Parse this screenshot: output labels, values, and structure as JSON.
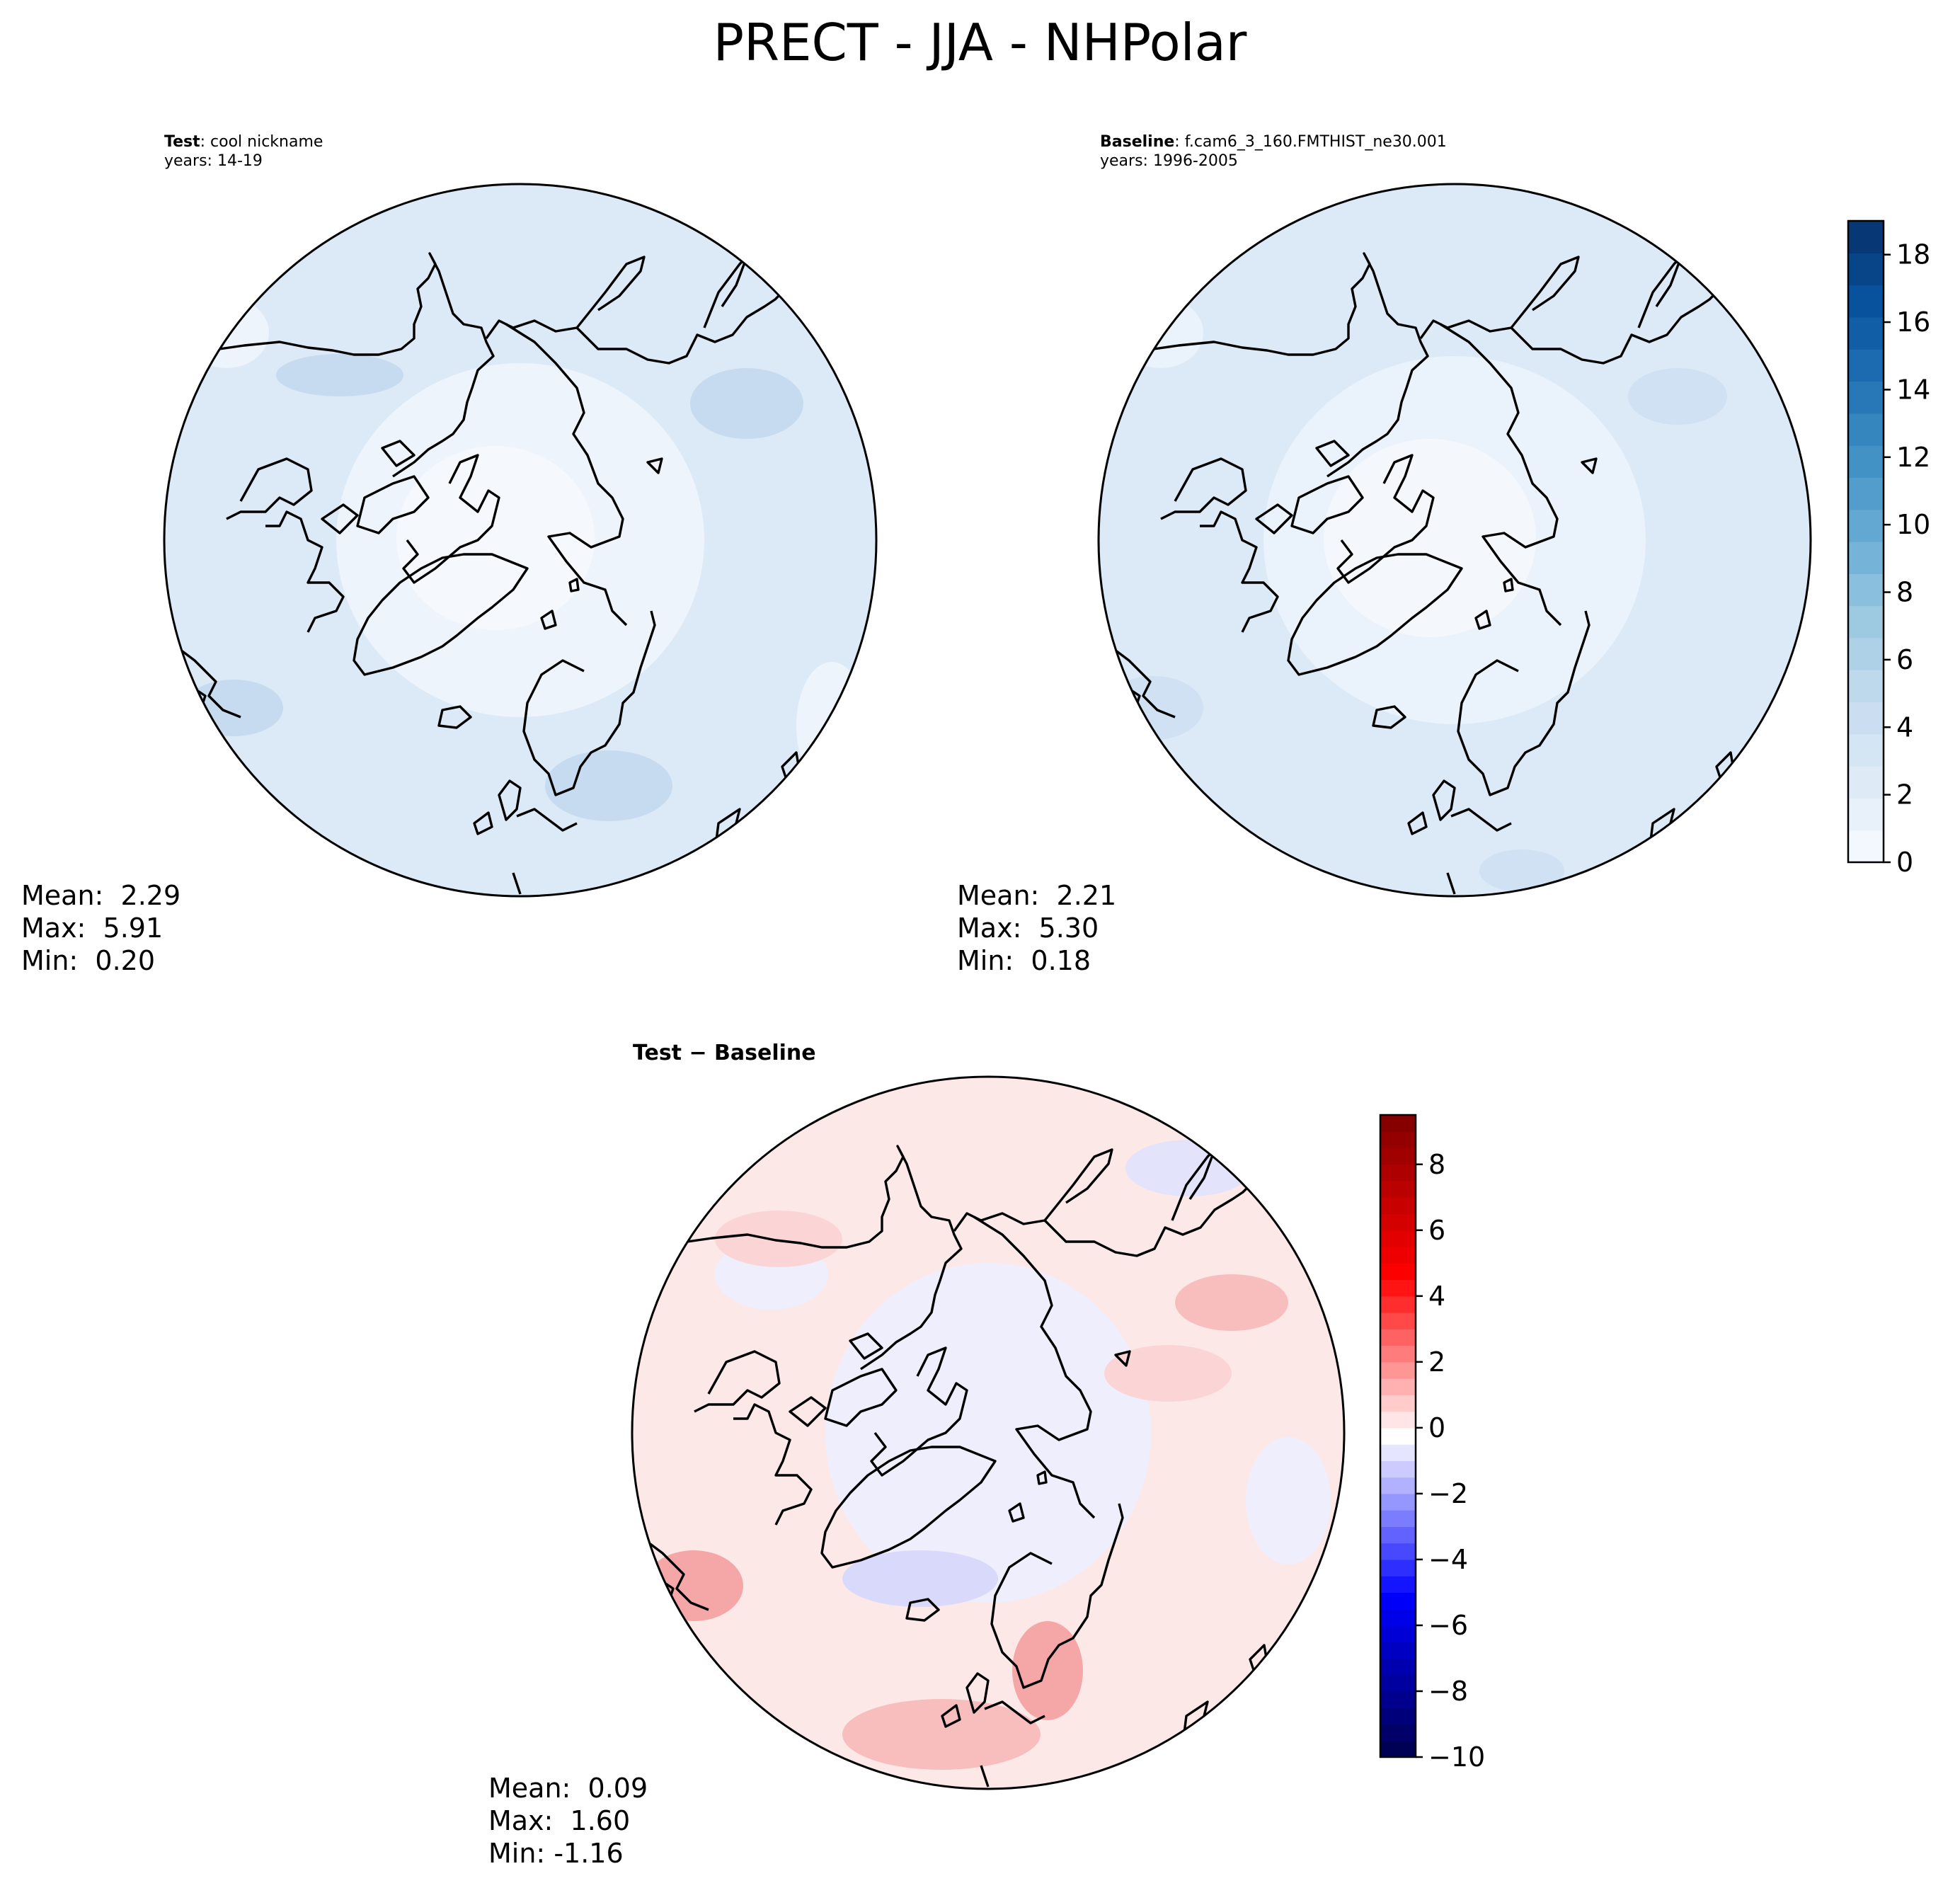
{
  "figure": {
    "title": "PRECT - JJA - NHPolar"
  },
  "panels": [
    {
      "id": "test",
      "title_bold": "Test",
      "title_rest": ": cool nickname",
      "years": "years: 14-19",
      "stats": {
        "mean_label": "Mean:",
        "mean": "2.29",
        "max_label": "Max:",
        "max": "5.91",
        "min_label": "Min:",
        "min": "0.20"
      }
    },
    {
      "id": "baseline",
      "title_bold": "Baseline",
      "title_rest": ": f.cam6_3_160.FMTHIST_ne30.001",
      "years": "years: 1996-2005",
      "stats": {
        "mean_label": "Mean:",
        "mean": "2.21",
        "max_label": "Max:",
        "max": "5.30",
        "min_label": "Min:",
        "min": "0.18"
      }
    },
    {
      "id": "diff",
      "title": "Test − Baseline",
      "stats": {
        "mean_label": "Mean:",
        "mean": "0.09",
        "max_label": "Max:",
        "max": "1.60",
        "min_label": "Min:",
        "min": "-1.16"
      }
    }
  ],
  "chart_data": [
    {
      "type": "heatmap",
      "projection": "north polar stereographic",
      "panel": "test",
      "title": "Test: cool nickname",
      "colormap": "Blues",
      "value_range": [
        0,
        19
      ],
      "mean": 2.29,
      "max": 5.91,
      "min": 0.2
    },
    {
      "type": "heatmap",
      "projection": "north polar stereographic",
      "panel": "baseline",
      "title": "Baseline: f.cam6_3_160.FMTHIST_ne30.001",
      "colormap": "Blues",
      "value_range": [
        0,
        19
      ],
      "mean": 2.21,
      "max": 5.3,
      "min": 0.18,
      "colorbar": {
        "min": 0,
        "max": 19,
        "levels": 20,
        "ticks": [
          0,
          2,
          4,
          6,
          8,
          10,
          12,
          14,
          16,
          18
        ]
      }
    },
    {
      "type": "heatmap",
      "projection": "north polar stereographic",
      "panel": "diff",
      "title": "Test − Baseline",
      "colormap": "seismic",
      "value_range": [
        -10,
        9.5
      ],
      "mean": 0.09,
      "max": 1.6,
      "min": -1.16,
      "colorbar": {
        "min": -10,
        "max": 9.5,
        "levels": 39,
        "ticks": [
          -10,
          -8,
          -6,
          -4,
          -2,
          0,
          2,
          4,
          6,
          8
        ]
      }
    }
  ]
}
